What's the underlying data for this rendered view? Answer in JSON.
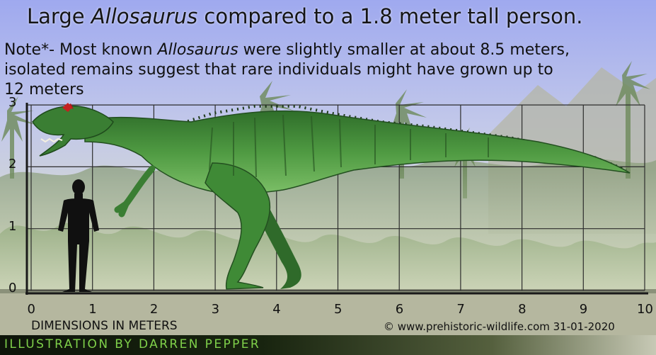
{
  "title": {
    "prefix": "Large ",
    "italic": "Allosaurus",
    "suffix": " compared to a 1.8 meter tall person."
  },
  "note": {
    "line1_prefix": "Note*- Most known ",
    "line1_italic": "Allosaurus",
    "line1_suffix": " were slightly smaller at about 8.5 meters,",
    "line2": "isolated remains suggest that rare individuals might have grown up to",
    "line3": "12 meters"
  },
  "scale": {
    "x_ticks": [
      "0",
      "1",
      "2",
      "3",
      "4",
      "5",
      "6",
      "7",
      "8",
      "9",
      "10"
    ],
    "y_ticks": [
      "0",
      "1",
      "2",
      "3"
    ],
    "x_range": [
      0,
      10
    ],
    "y_range": [
      0,
      3
    ],
    "unit": "meters"
  },
  "subjects": {
    "person_height_m": 1.8,
    "allosaurus_length_m": 10
  },
  "footer": {
    "dimensions_label": "DIMENSIONS IN METERS",
    "copyright": "© www.prehistoric-wildlife.com 31-01-2020",
    "illustration_credit": "ILLUSTRATION BY DARREN PEPPER"
  },
  "colors": {
    "sky_top": "#a9b3f2",
    "sky_bottom": "#dfe2d8",
    "jungle": "#6f8a5a",
    "ground": "#8d947b",
    "dinosaur": "#3f8a36",
    "person": "#101010",
    "illustration_text": "#7fd04a"
  }
}
